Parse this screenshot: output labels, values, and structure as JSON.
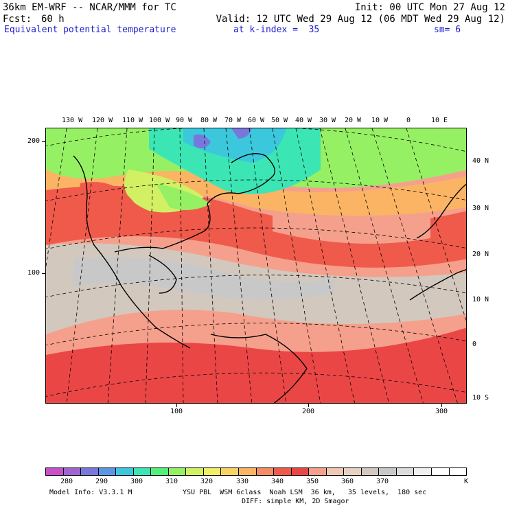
{
  "header": {
    "model": "36km EM-WRF -- NCAR/MMM for TC",
    "init": "Init: 00 UTC Mon 27 Aug 12",
    "fcst_label": "Fcst:",
    "fcst_value": "60 h",
    "valid": "Valid: 12 UTC Wed 29 Aug 12 (06 MDT Wed 29 Aug 12)",
    "field": "Equivalent potential temperature",
    "level": "at k-index =  35",
    "smoothing": "sm= 6"
  },
  "map": {
    "longitude_labels": [
      "130 W",
      "120 W",
      "110 W",
      "100 W",
      "90 W",
      "80 W",
      "70 W",
      "60 W",
      "50 W",
      "40 W",
      "30 W",
      "20 W",
      "10 W",
      "0",
      "10 E"
    ],
    "latitude_labels": [
      "40 N",
      "30 N",
      "20 N",
      "10 N",
      "0",
      "10 S"
    ],
    "y_grid_labels": [
      "200",
      "100"
    ],
    "x_grid_labels": [
      "100",
      "200",
      "300"
    ]
  },
  "colorbar": {
    "colors": [
      "#c850c8",
      "#a064d2",
      "#7878dc",
      "#5a96e6",
      "#3cc8dc",
      "#3ce6b4",
      "#50f07a",
      "#96f064",
      "#d2f064",
      "#f0f064",
      "#fad264",
      "#fab464",
      "#f58c64",
      "#f05a4b",
      "#eb4646",
      "#f5a08c",
      "#f0c8b4",
      "#e6d2c3",
      "#d2c8be",
      "#c8c8c8",
      "#dcdcdc",
      "#f0f0f0",
      "#ffffff",
      "#ffffff"
    ],
    "labels": [
      "280",
      "290",
      "300",
      "310",
      "320",
      "330",
      "340",
      "350",
      "360",
      "370"
    ],
    "unit": "K"
  },
  "footer": {
    "model_info": "Model Info: V3.3.1 M",
    "physics": "YSU PBL  WSM 6class  Noah LSM  36 km,   35 levels,  180 sec",
    "diffusion": "DIFF: simple KM, 2D Smagor"
  }
}
